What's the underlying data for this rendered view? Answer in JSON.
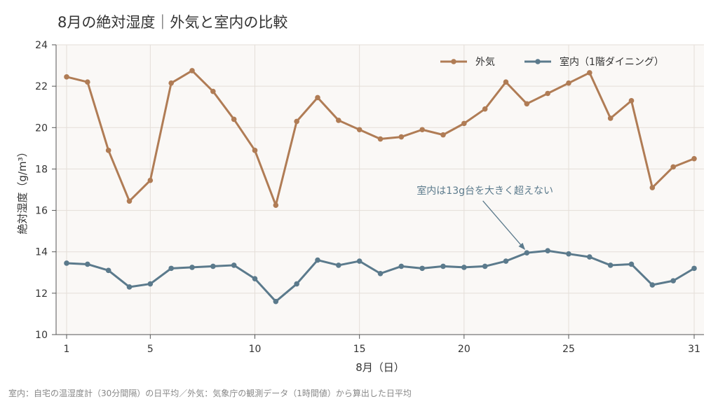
{
  "chart_data": {
    "type": "line",
    "title": "8月の絶対湿度｜外気と室内の比較",
    "xlabel": "8月（日）",
    "ylabel": "絶対湿度（g/m³）",
    "xlim": [
      1,
      31
    ],
    "ylim": [
      10,
      24
    ],
    "xticks": [
      "1",
      "5",
      "10",
      "15",
      "20",
      "25",
      "31"
    ],
    "yticks": [
      "10",
      "12",
      "14",
      "16",
      "18",
      "20",
      "22",
      "24"
    ],
    "grid": true,
    "legend_position": "top-right",
    "x": [
      1,
      2,
      3,
      4,
      5,
      6,
      7,
      8,
      9,
      10,
      11,
      12,
      13,
      14,
      15,
      16,
      17,
      18,
      19,
      20,
      21,
      22,
      23,
      24,
      25,
      26,
      27,
      28,
      29,
      30,
      31
    ],
    "series": [
      {
        "name": "外気",
        "color": "#b07c55",
        "values": [
          22.45,
          22.2,
          18.9,
          16.45,
          17.45,
          22.15,
          22.75,
          21.75,
          20.4,
          18.9,
          16.25,
          20.3,
          21.45,
          20.35,
          19.9,
          19.45,
          19.55,
          19.9,
          19.65,
          20.2,
          20.9,
          22.2,
          21.15,
          21.65,
          22.15,
          22.65,
          20.45,
          21.3,
          17.1,
          18.1,
          18.5
        ]
      },
      {
        "name": "室内（1階ダイニング）",
        "color": "#5b7a8c",
        "values": [
          13.45,
          13.4,
          13.1,
          12.3,
          12.45,
          13.2,
          13.25,
          13.3,
          13.35,
          12.7,
          11.6,
          12.45,
          13.6,
          13.35,
          13.55,
          12.95,
          13.3,
          13.2,
          13.3,
          13.25,
          13.3,
          13.55,
          13.95,
          14.05,
          13.9,
          13.75,
          13.35,
          13.4,
          12.4,
          12.6,
          13.2
        ]
      }
    ],
    "annotations": [
      {
        "text": "室内は13g台を大きく超えない",
        "x": 23,
        "y": 13.95,
        "text_x": 21,
        "text_y": 16.8,
        "color": "#5b7a8c"
      }
    ],
    "footnote": "室内：自宅の温湿度計（30分間隔）の日平均／外気：気象庁の観測データ（1時間値）から算出した日平均"
  }
}
